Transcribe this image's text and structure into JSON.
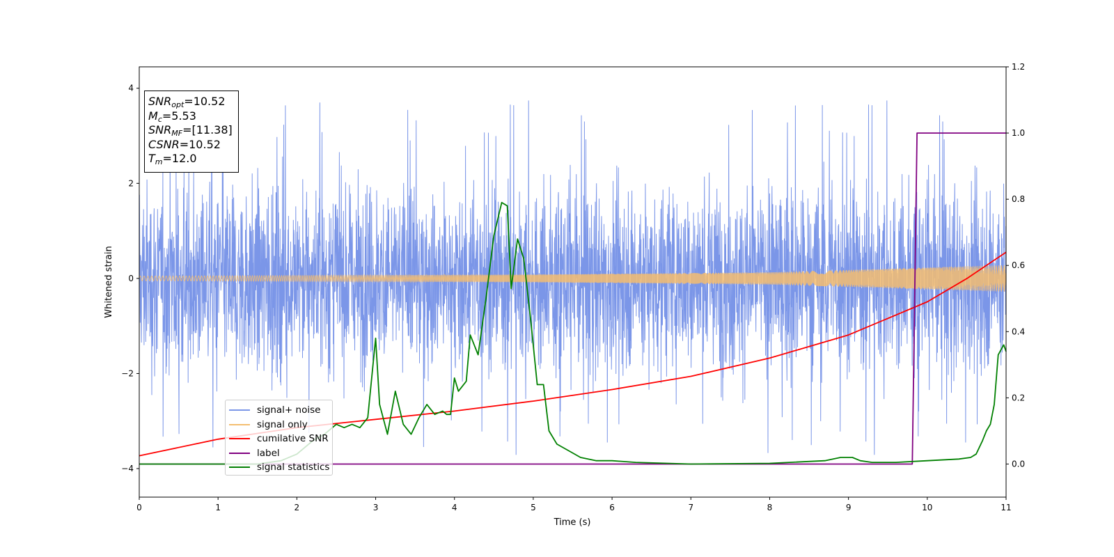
{
  "chart_data": {
    "type": "line",
    "xlabel": "Time (s)",
    "ylabel": "Whitened strain",
    "xlim": [
      0,
      11
    ],
    "ylim": [
      -4.6,
      4.45
    ],
    "y2lim": [
      -0.1,
      1.2
    ],
    "xticks": [
      "0",
      "1",
      "2",
      "3",
      "4",
      "5",
      "6",
      "7",
      "8",
      "9",
      "10",
      "11"
    ],
    "yticks": [
      "−4",
      "−2",
      "0",
      "2",
      "4"
    ],
    "y2ticks": [
      "0.0",
      "0.2",
      "0.4",
      "0.6",
      "0.8",
      "1.0",
      "1.2"
    ],
    "grid": false,
    "legend_position": "lower-left",
    "annotation_lines": [
      {
        "sym": "SNR",
        "sub": "opt",
        "val": "=10.52"
      },
      {
        "sym": "M",
        "sub": "c",
        "val": "=5.53"
      },
      {
        "sym": "SNR",
        "sub": "MF",
        "val": "=[11.38]"
      },
      {
        "sym": "CSNR",
        "sub": "",
        "val": "=10.52"
      },
      {
        "sym": "T",
        "sub": "m",
        "val": "=12.0"
      }
    ],
    "series": [
      {
        "name": "signal+ noise",
        "color": "#7b96e8",
        "axis": "left",
        "kind": "noise",
        "envelope": {
          "typical_amplitude": 2.0,
          "max": 4.05,
          "min": -4.15
        }
      },
      {
        "name": "signal only",
        "color": "#f4bd70",
        "axis": "left",
        "kind": "chirp",
        "amplitude": {
          "x": [
            0,
            5,
            8,
            11
          ],
          "y": [
            0.05,
            0.08,
            0.13,
            0.28
          ]
        }
      },
      {
        "name": "cumilative SNR",
        "color": "#ff0000",
        "axis": "right",
        "x": [
          0,
          1,
          2,
          3,
          4,
          5,
          6,
          7,
          8,
          9,
          10,
          10.5,
          11
        ],
        "y": [
          0.025,
          0.075,
          0.11,
          0.135,
          0.16,
          0.19,
          0.225,
          0.265,
          0.32,
          0.39,
          0.49,
          0.56,
          0.64
        ]
      },
      {
        "name": "label",
        "color": "#800080",
        "axis": "right",
        "x": [
          0,
          9.81,
          9.87,
          11
        ],
        "y": [
          0.0,
          0.0,
          1.0,
          1.0
        ]
      },
      {
        "name": "signal statistics",
        "color": "#008000",
        "axis": "right",
        "x": [
          0,
          0.5,
          1,
          1.5,
          1.8,
          2.0,
          2.2,
          2.35,
          2.5,
          2.6,
          2.7,
          2.8,
          2.9,
          3.0,
          3.05,
          3.15,
          3.25,
          3.35,
          3.45,
          3.55,
          3.65,
          3.75,
          3.85,
          3.9,
          3.95,
          4.0,
          4.05,
          4.15,
          4.2,
          4.3,
          4.4,
          4.5,
          4.6,
          4.67,
          4.72,
          4.8,
          4.88,
          4.97,
          5.05,
          5.13,
          5.2,
          5.3,
          5.45,
          5.6,
          5.8,
          6.0,
          6.3,
          7.0,
          8.0,
          8.7,
          8.9,
          9.05,
          9.15,
          9.3,
          9.6,
          10.0,
          10.4,
          10.55,
          10.62,
          10.7,
          10.75,
          10.8,
          10.85,
          10.9,
          10.97,
          11.0
        ],
        "y": [
          0.0,
          0.0,
          0.0,
          0.0,
          0.01,
          0.03,
          0.07,
          0.09,
          0.12,
          0.11,
          0.12,
          0.11,
          0.14,
          0.38,
          0.18,
          0.09,
          0.22,
          0.12,
          0.09,
          0.14,
          0.18,
          0.15,
          0.16,
          0.15,
          0.15,
          0.26,
          0.22,
          0.25,
          0.39,
          0.33,
          0.5,
          0.69,
          0.79,
          0.78,
          0.53,
          0.68,
          0.62,
          0.43,
          0.24,
          0.24,
          0.1,
          0.06,
          0.04,
          0.02,
          0.01,
          0.01,
          0.005,
          0.0,
          0.002,
          0.01,
          0.02,
          0.02,
          0.01,
          0.005,
          0.005,
          0.01,
          0.015,
          0.02,
          0.03,
          0.07,
          0.1,
          0.12,
          0.18,
          0.33,
          0.36,
          0.34
        ]
      }
    ]
  }
}
